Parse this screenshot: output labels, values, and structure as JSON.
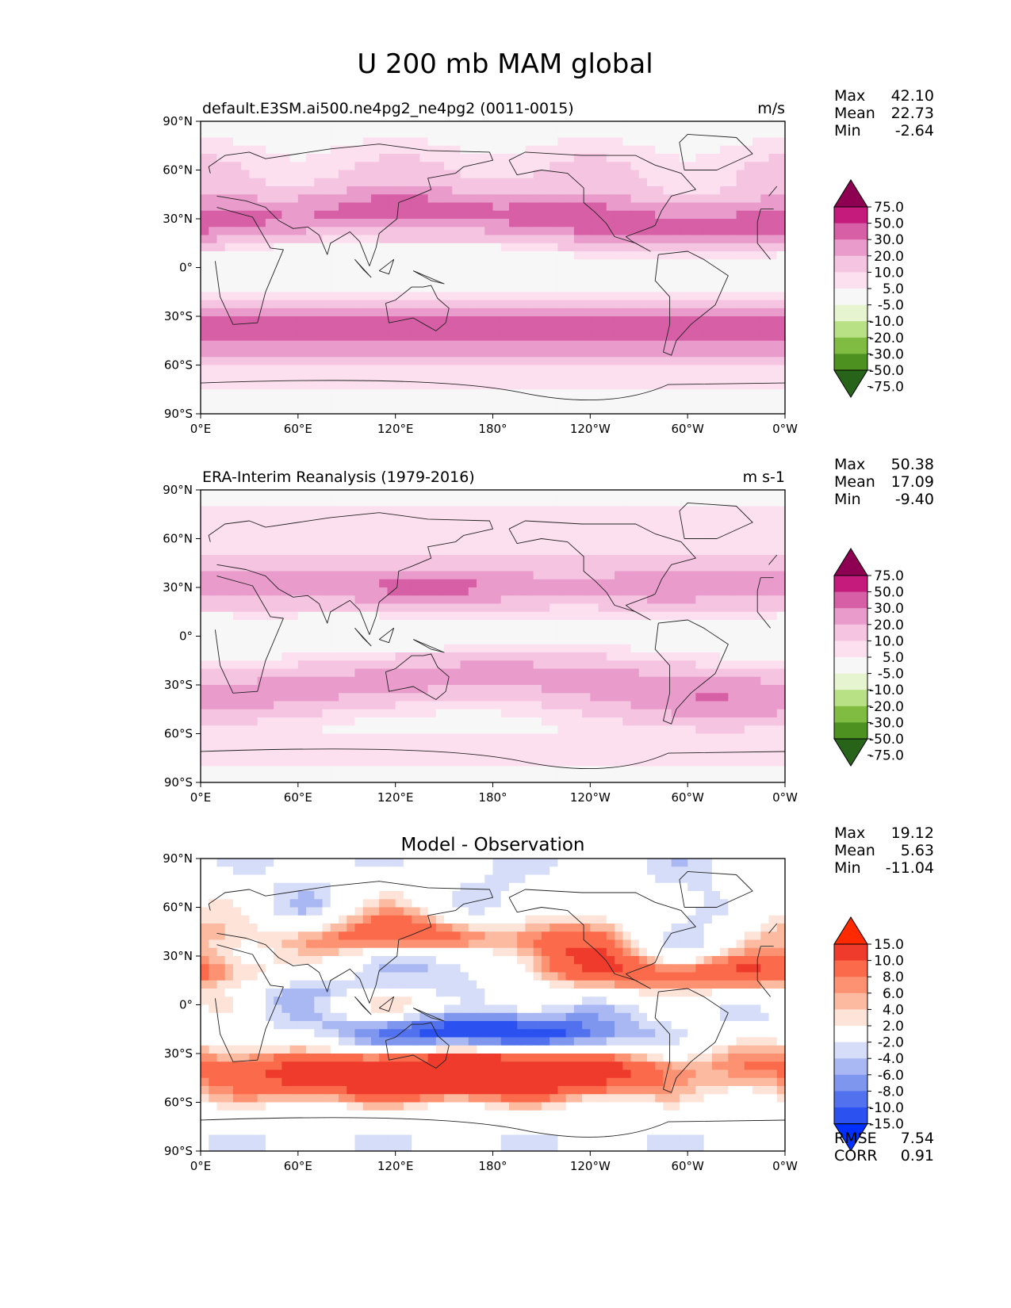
{
  "figure_title": "U 200 mb MAM global",
  "x_ticks": [
    "0°E",
    "60°E",
    "120°E",
    "180°",
    "120°W",
    "60°W",
    "0°W"
  ],
  "y_ticks": [
    "90°N",
    "60°N",
    "30°N",
    "0°",
    "30°S",
    "60°S",
    "90°S"
  ],
  "colors": {
    "pos": [
      "#f7f7f7",
      "#fde0ef",
      "#f5c4e0",
      "#e99ccb",
      "#d75fa6",
      "#c51b7d",
      "#8e0152"
    ],
    "neg": [
      "#f7f7f7",
      "#e6f5d0",
      "#b8e186",
      "#7fbc41",
      "#4d9221",
      "#276419"
    ],
    "diff_pos": [
      "#ffffff",
      "#fee3d8",
      "#fcbba1",
      "#fc9272",
      "#fb6a4a",
      "#ef3b2c",
      "#ff2a00"
    ],
    "diff_neg": [
      "#ffffff",
      "#d6ddf8",
      "#a9b8f2",
      "#7f96ee",
      "#5271ee",
      "#2b52f0",
      "#0030ff"
    ]
  },
  "chart_data": [
    {
      "type": "heatmap",
      "title": "default.E3SM.ai500.ne4pg2_ne4pg2 (0011-0015)",
      "units": "m/s",
      "stats": {
        "labels": [
          "Max",
          "Mean",
          "Min"
        ],
        "values": [
          "42.10",
          "22.73",
          "-2.64"
        ]
      },
      "colorbar_labels": [
        "75.0",
        "50.0",
        "30.0",
        "20.0",
        "10.0",
        "5.0",
        "-5.0",
        "-10.0",
        "-20.0",
        "-30.0",
        "-50.0",
        "-75.0"
      ],
      "field_model": "model"
    },
    {
      "type": "heatmap",
      "title": "ERA-Interim Reanalysis (1979-2016)",
      "units": "m s-1",
      "stats": {
        "labels": [
          "Max",
          "Mean",
          "Min"
        ],
        "values": [
          "50.38",
          "17.09",
          "-9.40"
        ]
      },
      "colorbar_labels": [
        "75.0",
        "50.0",
        "30.0",
        "20.0",
        "10.0",
        "5.0",
        "-5.0",
        "-10.0",
        "-20.0",
        "-30.0",
        "-50.0",
        "-75.0"
      ],
      "field_model": "obs"
    },
    {
      "type": "heatmap",
      "title": "Model - Observation",
      "units": "",
      "stats": {
        "labels": [
          "Max",
          "Mean",
          "Min"
        ],
        "values": [
          "19.12",
          "5.63",
          "-11.04"
        ]
      },
      "colorbar_labels": [
        "15.0",
        "10.0",
        "8.0",
        "6.0",
        "4.0",
        "2.0",
        "-2.0",
        "-4.0",
        "-6.0",
        "-8.0",
        "-10.0",
        "-15.0"
      ],
      "extra_stats": {
        "labels": [
          "RMSE",
          "CORR"
        ],
        "values": [
          "7.54",
          "0.91"
        ]
      },
      "field_model": "diff"
    }
  ]
}
